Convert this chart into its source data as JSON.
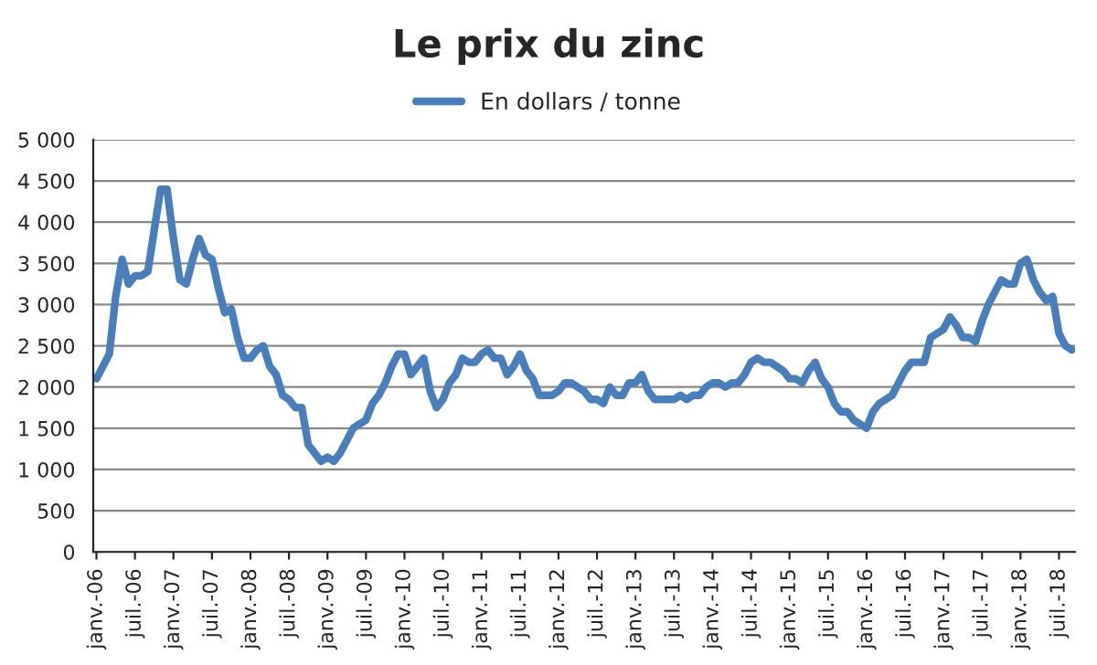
{
  "chart_data": {
    "type": "line",
    "title": "Le prix du zinc",
    "categories": [
      "janv.-06",
      null,
      null,
      null,
      null,
      null,
      "juil.-06",
      null,
      null,
      null,
      null,
      null,
      "janv.-07",
      null,
      null,
      null,
      null,
      null,
      "juil.-07",
      null,
      null,
      null,
      null,
      null,
      "janv.-08",
      null,
      null,
      null,
      null,
      null,
      "juil.-08",
      null,
      null,
      null,
      null,
      null,
      "janv.-09",
      null,
      null,
      null,
      null,
      null,
      "juil.-09",
      null,
      null,
      null,
      null,
      null,
      "janv.-10",
      null,
      null,
      null,
      null,
      null,
      "juil.-10",
      null,
      null,
      null,
      null,
      null,
      "janv.-11",
      null,
      null,
      null,
      null,
      null,
      "juil.-11",
      null,
      null,
      null,
      null,
      null,
      "janv.-12",
      null,
      null,
      null,
      null,
      null,
      "juil.-12",
      null,
      null,
      null,
      null,
      null,
      "janv.-13",
      null,
      null,
      null,
      null,
      null,
      "juil.-13",
      null,
      null,
      null,
      null,
      null,
      "janv.-14",
      null,
      null,
      null,
      null,
      null,
      "juil.-14",
      null,
      null,
      null,
      null,
      null,
      "janv.-15",
      null,
      null,
      null,
      null,
      null,
      "juil.-15",
      null,
      null,
      null,
      null,
      null,
      "janv.-16",
      null,
      null,
      null,
      null,
      null,
      "juil.-16",
      null,
      null,
      null,
      null,
      null,
      "janv.-17",
      null,
      null,
      null,
      null,
      null,
      "juil.-17",
      null,
      null,
      null,
      null,
      null,
      "janv.-18",
      null,
      null,
      null,
      null,
      null,
      "juil.-18",
      null,
      null
    ],
    "series": [
      {
        "name": "En dollars / tonne",
        "color": "#4a7ebb",
        "values": [
          2100,
          2250,
          2400,
          3100,
          3550,
          3250,
          3350,
          3350,
          3400,
          3900,
          4400,
          4400,
          3800,
          3300,
          3250,
          3550,
          3800,
          3600,
          3550,
          3200,
          2900,
          2950,
          2600,
          2350,
          2350,
          2450,
          2500,
          2250,
          2150,
          1900,
          1850,
          1750,
          1750,
          1300,
          1200,
          1100,
          1150,
          1100,
          1200,
          1350,
          1500,
          1550,
          1600,
          1800,
          1900,
          2050,
          2250,
          2400,
          2400,
          2150,
          2250,
          2350,
          1950,
          1750,
          1850,
          2050,
          2150,
          2350,
          2300,
          2300,
          2400,
          2450,
          2350,
          2350,
          2150,
          2250,
          2400,
          2200,
          2100,
          1900,
          1900,
          1900,
          1950,
          2050,
          2050,
          2000,
          1950,
          1850,
          1850,
          1800,
          2000,
          1900,
          1900,
          2050,
          2050,
          2150,
          1950,
          1850,
          1850,
          1850,
          1850,
          1900,
          1850,
          1900,
          1900,
          2000,
          2050,
          2050,
          2000,
          2050,
          2050,
          2150,
          2300,
          2350,
          2300,
          2300,
          2250,
          2200,
          2100,
          2100,
          2050,
          2200,
          2300,
          2100,
          2000,
          1800,
          1700,
          1700,
          1600,
          1550,
          1500,
          1700,
          1800,
          1850,
          1900,
          2050,
          2200,
          2300,
          2300,
          2300,
          2600,
          2650,
          2700,
          2850,
          2750,
          2600,
          2600,
          2550,
          2800,
          3000,
          3150,
          3300,
          3250,
          3250,
          3500,
          3550,
          3300,
          3150,
          3050,
          3100,
          2650,
          2500,
          2450
        ]
      }
    ],
    "ylim": [
      0,
      5000
    ],
    "yticks": [
      0,
      500,
      {
        "value": 1000,
        "label": "1 000"
      },
      {
        "value": 1500,
        "label": "1 500"
      },
      {
        "value": 2000,
        "label": "2 000"
      },
      {
        "value": 2500,
        "label": "2 500"
      },
      {
        "value": 3000,
        "label": "3 000"
      },
      {
        "value": 3500,
        "label": "3 500"
      },
      {
        "value": 4000,
        "label": "4 000"
      },
      {
        "value": 4500,
        "label": "4 500"
      },
      {
        "value": 5000,
        "label": "5 000"
      }
    ],
    "grid": "y",
    "legend": "top",
    "marker": "none",
    "line_style": "solid"
  }
}
